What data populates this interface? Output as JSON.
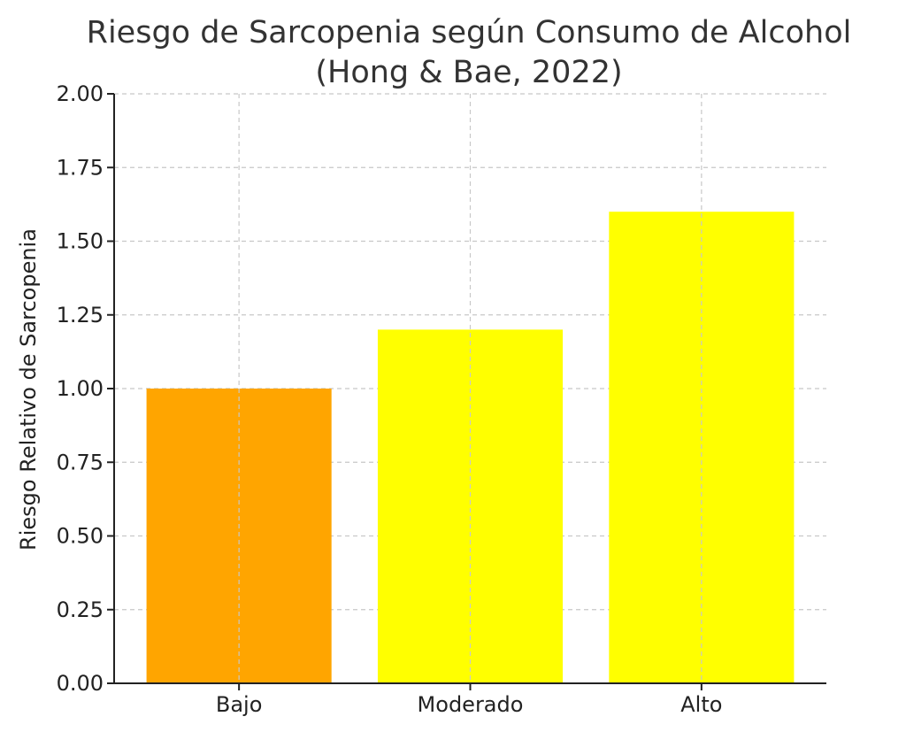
{
  "chart_data": {
    "type": "bar",
    "title_line1": "Riesgo de Sarcopenia según Consumo de Alcohol",
    "title_line2": "(Hong & Bae, 2022)",
    "xlabel": "",
    "ylabel": "Riesgo Relativo de Sarcopenia",
    "categories": [
      "Bajo",
      "Moderado",
      "Alto"
    ],
    "values": [
      1.0,
      1.2,
      1.6
    ],
    "colors": [
      "#FFA500",
      "#FFFF00",
      "#FFFF00"
    ],
    "ylim": [
      0,
      2
    ],
    "yticks": [
      0,
      0.25,
      0.5,
      0.75,
      1.0,
      1.25,
      1.5,
      1.75,
      2.0
    ],
    "ytick_labels": [
      "0.00",
      "0.25",
      "0.50",
      "0.75",
      "1.00",
      "1.25",
      "1.50",
      "1.75",
      "2.00"
    ],
    "grid": true,
    "legend": "none"
  }
}
